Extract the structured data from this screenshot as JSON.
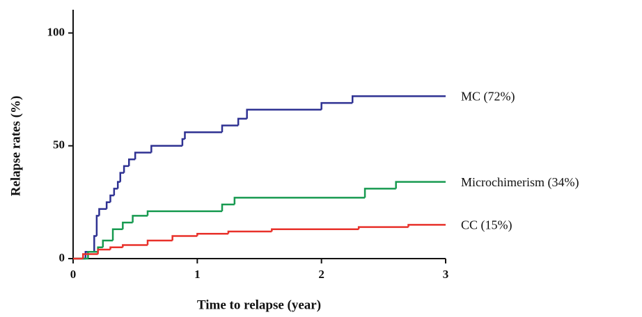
{
  "chart_data": {
    "type": "step-line",
    "step": "post",
    "x_label": "Time to relapse (year)",
    "y_label": "Relapse rates (%)",
    "xlim": [
      0,
      3
    ],
    "ylim": [
      0,
      110
    ],
    "xticks": [
      0,
      1,
      2,
      3
    ],
    "yticks": [
      0,
      50,
      100
    ],
    "grid": false,
    "legend": "line-end",
    "series": [
      {
        "name": "MC (72%)",
        "color": "#2e3192",
        "x": [
          0,
          0.1,
          0.17,
          0.19,
          0.21,
          0.27,
          0.3,
          0.33,
          0.36,
          0.38,
          0.41,
          0.45,
          0.5,
          0.63,
          0.88,
          0.9,
          1.2,
          1.33,
          1.4,
          2.0,
          2.25,
          3
        ],
        "values": [
          0,
          3,
          10,
          19,
          22,
          25,
          28,
          31,
          34,
          38,
          41,
          44,
          47,
          50,
          53,
          56,
          59,
          62,
          66,
          69,
          72,
          72
        ]
      },
      {
        "name": "Microchimerism (34%)",
        "color": "#179a50",
        "x": [
          0,
          0.12,
          0.2,
          0.24,
          0.32,
          0.4,
          0.48,
          0.6,
          1.2,
          1.3,
          2.35,
          2.6,
          3
        ],
        "values": [
          0,
          3,
          5,
          8,
          13,
          16,
          19,
          21,
          24,
          27,
          31,
          34,
          34
        ]
      },
      {
        "name": "CC (15%)",
        "color": "#e8312a",
        "x": [
          0,
          0.08,
          0.2,
          0.3,
          0.4,
          0.6,
          0.8,
          1.0,
          1.25,
          1.6,
          2.3,
          2.7,
          3
        ],
        "values": [
          0,
          2,
          4,
          5,
          6,
          8,
          10,
          11,
          12,
          13,
          14,
          15,
          15
        ]
      }
    ]
  }
}
